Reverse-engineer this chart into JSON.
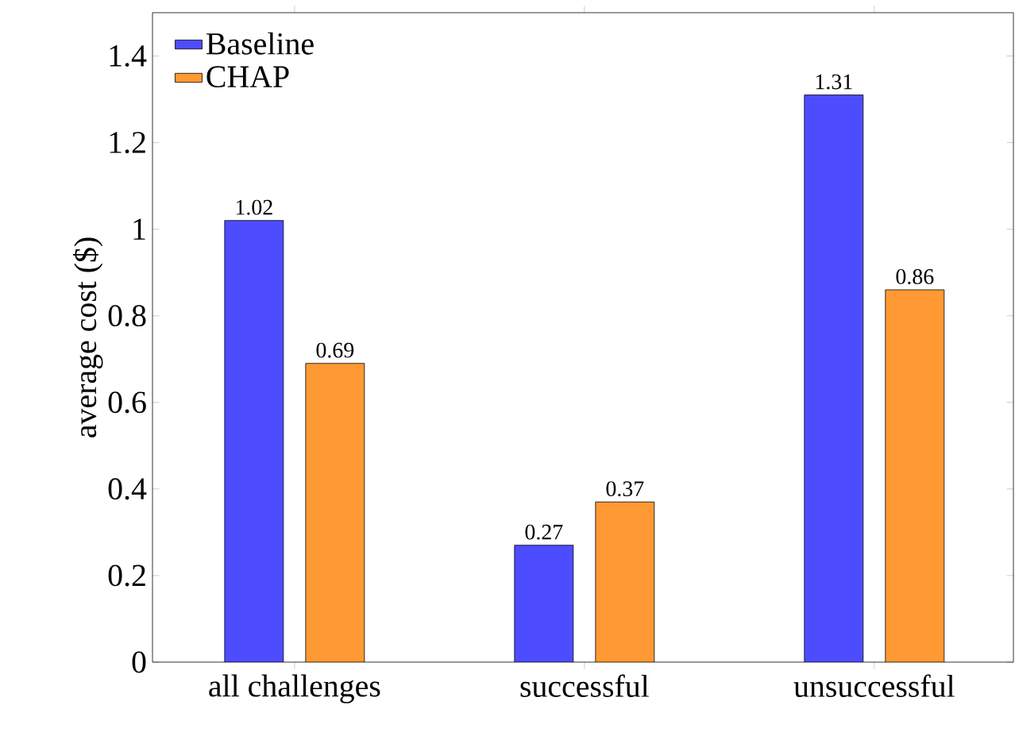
{
  "chart_data": {
    "type": "bar",
    "ylabel": "average cost ($)",
    "categories": [
      "all challenges",
      "successful",
      "unsuccessful"
    ],
    "series": [
      {
        "name": "Baseline",
        "color": "#4d4dff",
        "values": [
          1.02,
          0.27,
          1.31
        ]
      },
      {
        "name": "CHAP",
        "color": "#ff9933",
        "values": [
          0.69,
          0.37,
          0.86
        ]
      }
    ],
    "ylim": [
      0,
      1.5
    ],
    "yticks": [
      0,
      0.2,
      0.4,
      0.6,
      0.8,
      1,
      1.2,
      1.4
    ],
    "data_labels": true,
    "legend": "top left",
    "grid": false
  }
}
